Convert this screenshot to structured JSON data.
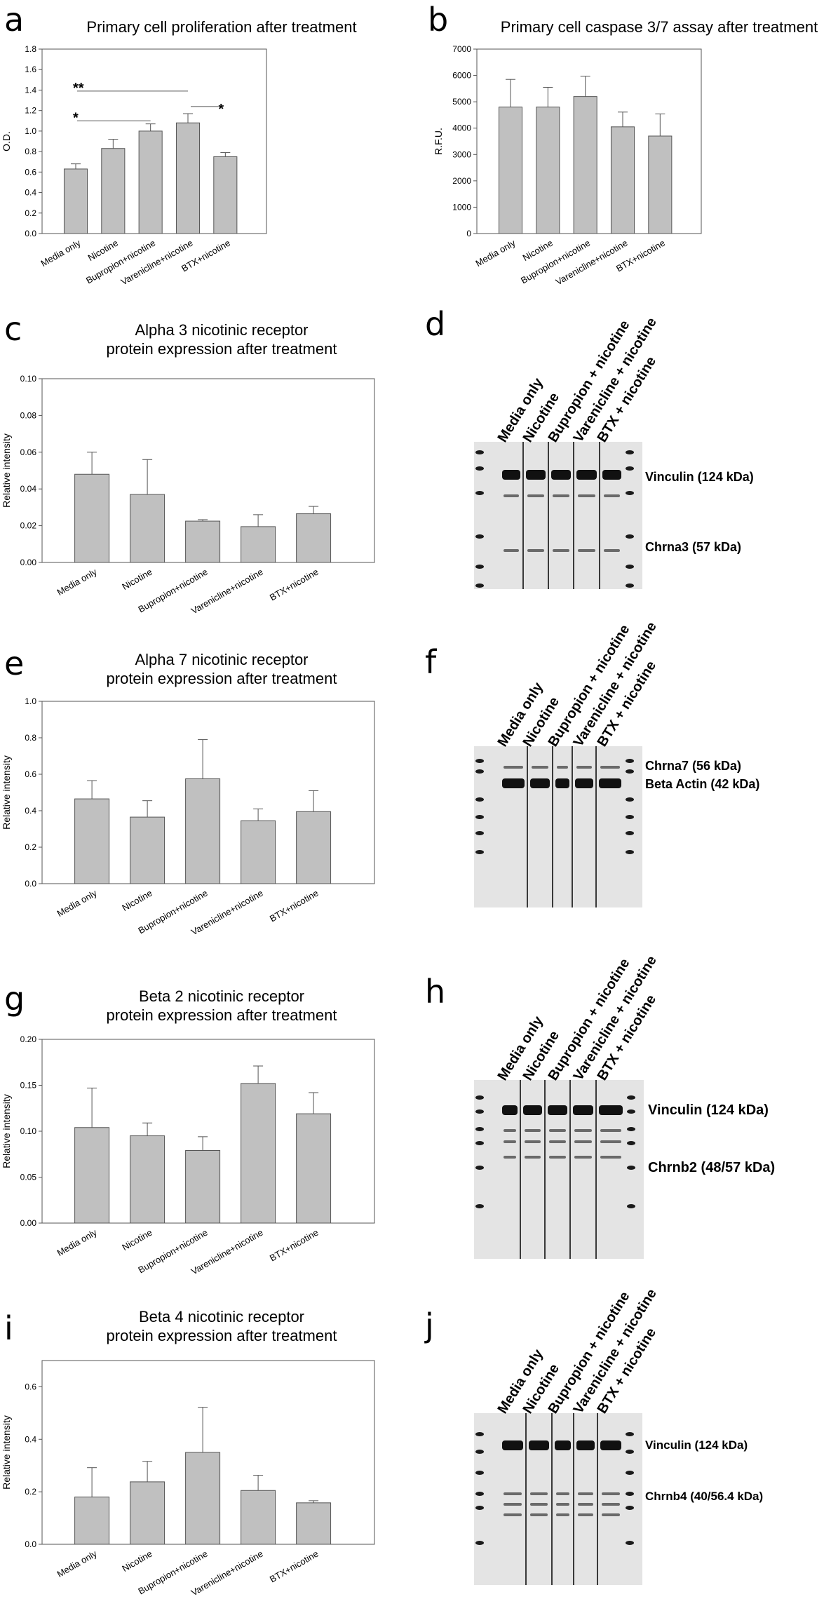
{
  "chart_data": [
    {
      "id": "a",
      "type": "bar",
      "panel_label": "a",
      "title": [
        "Primary cell proliferation after treatment"
      ],
      "ylabel": "O.D.",
      "categories": [
        "Media only",
        "Nicotine",
        "Bupropion+nicotine",
        "Varenicline+nicotine",
        "BTX+nicotine"
      ],
      "values": [
        0.63,
        0.83,
        1.0,
        1.08,
        0.75
      ],
      "errors": [
        0.05,
        0.09,
        0.07,
        0.09,
        0.04
      ],
      "ylim": [
        0,
        1.8
      ],
      "yticks": [
        "0.0",
        "0.2",
        "0.4",
        "0.6",
        "0.8",
        "1.0",
        "1.2",
        "1.4",
        "1.6",
        "1.8"
      ],
      "significance": [
        {
          "from": 0,
          "to": 3,
          "label": "**",
          "level": 1.39
        },
        {
          "from": 0,
          "to": 2,
          "label": "*",
          "level": 1.1
        },
        {
          "from": 3,
          "to": 4,
          "label": "*",
          "level": 1.24
        }
      ]
    },
    {
      "id": "b",
      "type": "bar",
      "panel_label": "b",
      "title": [
        "Primary cell caspase 3/7 assay after treatment"
      ],
      "ylabel": "R.F.U.",
      "categories": [
        "Media only",
        "Nicotine",
        "Bupropion+nicotine",
        "Varenicline+nicotine",
        "BTX+nicotine"
      ],
      "values": [
        4800,
        4800,
        5200,
        4050,
        3700
      ],
      "errors": [
        1050,
        750,
        770,
        560,
        840
      ],
      "ylim": [
        0,
        7000
      ],
      "yticks": [
        "0",
        "1000",
        "2000",
        "3000",
        "4000",
        "5000",
        "6000",
        "7000"
      ]
    },
    {
      "id": "c",
      "type": "bar",
      "panel_label": "c",
      "title": [
        "Alpha 3 nicotinic receptor",
        "protein expression after treatment"
      ],
      "ylabel": "Relative intensity",
      "categories": [
        "Media only",
        "Nicotine",
        "Bupropion+nicotine",
        "Varenicline+nicotine",
        "BTX+nicotine"
      ],
      "values": [
        0.048,
        0.037,
        0.0225,
        0.0195,
        0.0265
      ],
      "errors": [
        0.012,
        0.019,
        0.0008,
        0.0065,
        0.004
      ],
      "ylim": [
        0,
        0.1
      ],
      "yticks": [
        "0.00",
        "0.02",
        "0.04",
        "0.06",
        "0.08",
        "0.10"
      ]
    },
    {
      "id": "e",
      "type": "bar",
      "panel_label": "e",
      "title": [
        "Alpha 7 nicotinic receptor",
        "protein expression after treatment"
      ],
      "ylabel": "Relative intensity",
      "categories": [
        "Media only",
        "Nicotine",
        "Bupropion+nicotine",
        "Varenicline+nicotine",
        "BTX+nicotine"
      ],
      "values": [
        0.465,
        0.365,
        0.575,
        0.345,
        0.395
      ],
      "errors": [
        0.1,
        0.09,
        0.215,
        0.065,
        0.115
      ],
      "ylim": [
        0,
        1.0
      ],
      "yticks": [
        "0.0",
        "0.2",
        "0.4",
        "0.6",
        "0.8",
        "1.0"
      ]
    },
    {
      "id": "g",
      "type": "bar",
      "panel_label": "g",
      "title": [
        "Beta 2 nicotinic receptor",
        "protein expression after treatment"
      ],
      "ylabel": "Relative intensity",
      "categories": [
        "Media only",
        "Nicotine",
        "Bupropion+nicotine",
        "Varenicline+nicotine",
        "BTX+nicotine"
      ],
      "values": [
        0.104,
        0.095,
        0.079,
        0.152,
        0.119
      ],
      "errors": [
        0.043,
        0.014,
        0.015,
        0.019,
        0.023
      ],
      "ylim": [
        0,
        0.2
      ],
      "yticks": [
        "0.00",
        "0.05",
        "0.10",
        "0.15",
        "0.20"
      ]
    },
    {
      "id": "i",
      "type": "bar",
      "panel_label": "i",
      "title": [
        "Beta 4 nicotinic receptor",
        "protein expression after treatment"
      ],
      "ylabel": "Relative intensity",
      "categories": [
        "Media only",
        "Nicotine",
        "Bupropion+nicotine",
        "Varenicline+nicotine",
        "BTX+nicotine"
      ],
      "values": [
        0.18,
        0.238,
        0.35,
        0.205,
        0.158
      ],
      "errors": [
        0.112,
        0.078,
        0.172,
        0.058,
        0.008
      ],
      "ylim": [
        0,
        0.7
      ],
      "yticks": [
        "0.0",
        "0.2",
        "0.4",
        "0.6"
      ]
    }
  ],
  "blots": [
    {
      "id": "d",
      "panel_label": "d",
      "lanes": [
        "Media only",
        "Nicotine",
        "Bupropion + nicotine",
        "Varenicline + nicotine",
        "BTX + nicotine"
      ],
      "bands": [
        "Vinculin (124 kDa)",
        "Chrna3 (57 kDa)"
      ]
    },
    {
      "id": "f",
      "panel_label": "f",
      "lanes": [
        "Media only",
        "Nicotine",
        "Bupropion + nicotine",
        "Varenicline + nicotine",
        "BTX + nicotine"
      ],
      "bands": [
        "Chrna7 (56 kDa)",
        "Beta Actin (42 kDa)"
      ]
    },
    {
      "id": "h",
      "panel_label": "h",
      "lanes": [
        "Media only",
        "Nicotine",
        "Bupropion + nicotine",
        "Varenicline + nicotine",
        "BTX + nicotine"
      ],
      "bands": [
        "Vinculin (124 kDa)",
        "Chrnb2 (48/57 kDa)"
      ]
    },
    {
      "id": "j",
      "panel_label": "j",
      "lanes": [
        "Media only",
        "Nicotine",
        "Bupropion + nicotine",
        "Varenicline + nicotine",
        "BTX + nicotine"
      ],
      "bands": [
        "Vinculin (124 kDa)",
        "Chrnb4 (40/56.4 kDa)"
      ]
    }
  ]
}
